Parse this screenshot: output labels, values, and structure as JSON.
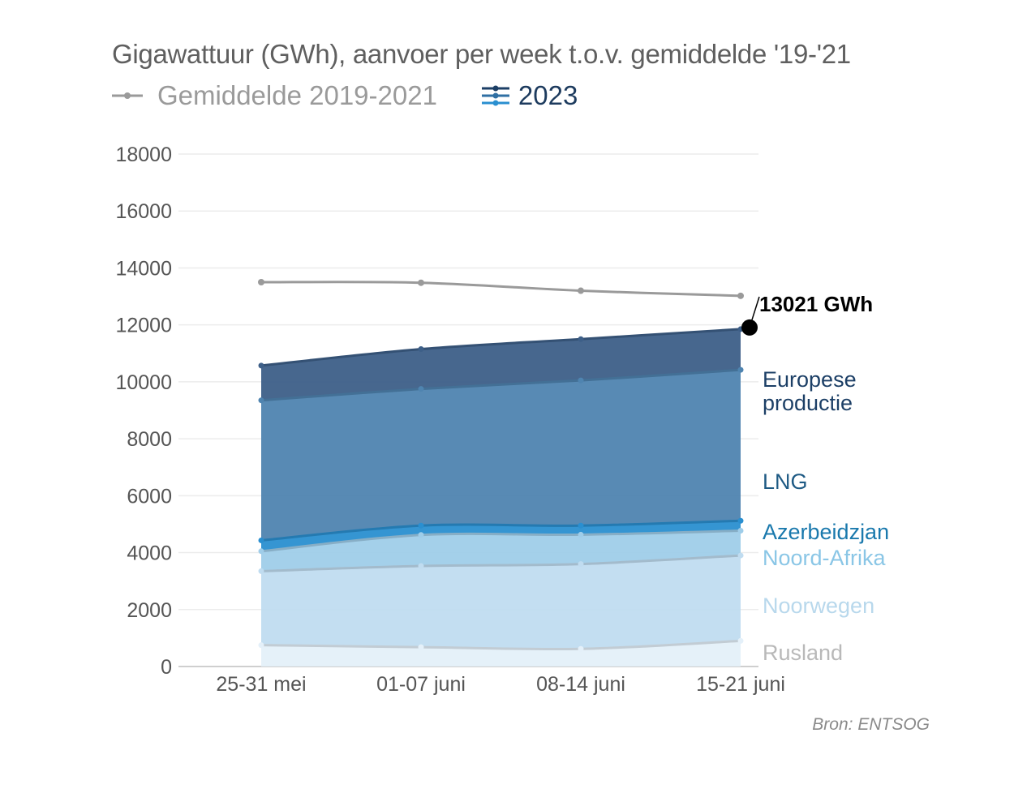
{
  "chart_data": {
    "type": "area",
    "stacked": true,
    "title": "Gigawattuur (GWh), aanvoer per week t.o.v. gemiddelde '19-'21",
    "categories": [
      "25-31 mei",
      "01-07 juni",
      "08-14 juni",
      "15-21 juni"
    ],
    "ylim": [
      0,
      18000
    ],
    "yticks": [
      "0",
      "2000",
      "4000",
      "6000",
      "8000",
      "10000",
      "12000",
      "14000",
      "16000",
      "18000"
    ],
    "grid": true,
    "legend": [
      {
        "label": "Gemiddelde 2019-2021",
        "color": "#9a9a9a"
      },
      {
        "label": "2023",
        "color": "#1d4f7a"
      }
    ],
    "series": [
      {
        "name": "Rusland",
        "values": [
          750,
          680,
          620,
          900
        ],
        "color": "#e4f0f9",
        "label_color": "#b9b9b9"
      },
      {
        "name": "Noorwegen",
        "values": [
          2600,
          2850,
          2980,
          3000
        ],
        "color": "#c0dcf0",
        "label_color": "#b8d8ec"
      },
      {
        "name": "Noord-Afrika",
        "values": [
          700,
          1090,
          1030,
          870
        ],
        "color": "#9fcde9",
        "label_color": "#8ac6e6"
      },
      {
        "name": "Azerbeidzjan",
        "values": [
          380,
          330,
          320,
          350
        ],
        "color": "#2a8fd0",
        "label_color": "#1a79ad"
      },
      {
        "name": "LNG",
        "values": [
          4920,
          4800,
          5100,
          5300
        ],
        "color": "#4f84b0",
        "label_color": "#1e5a84"
      },
      {
        "name": "Europese productie",
        "label_lines": [
          "Europese",
          "productie"
        ],
        "values": [
          1220,
          1400,
          1450,
          1430
        ],
        "color": "#3d5f88",
        "label_color": "#1c3f66"
      }
    ],
    "average": {
      "name": "Gemiddelde 2019-2021",
      "values": [
        13500,
        13480,
        13200,
        13021
      ],
      "color": "#9a9a9a"
    },
    "callout": {
      "text": "13021 GWh",
      "value": 11850
    }
  },
  "source": "Bron: ENTSOG"
}
